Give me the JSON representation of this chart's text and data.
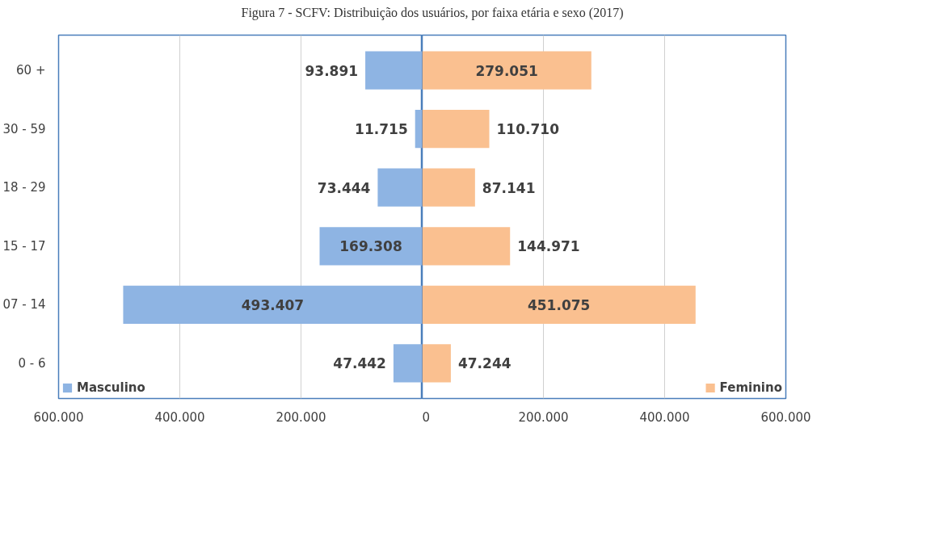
{
  "chart_data": [
    {
      "type": "bar",
      "orientation": "horizontal",
      "title": "Figura 7 - SCFV: Distribuição dos usuários, por faixa etária e sexo (2017)",
      "categories": [
        "60 +",
        "30 - 59",
        "18 - 29",
        "15 - 17",
        "07 - 14",
        "0 - 6"
      ],
      "series": [
        {
          "name": "Masculino",
          "color": "#8eb4e3",
          "values": [
            93891,
            11715,
            73444,
            169308,
            493407,
            47442
          ],
          "value_labels": [
            "93.891",
            "11.715",
            "73.444",
            "169.308",
            "493.407",
            "47.442"
          ]
        }
      ],
      "xlim": [
        600000,
        0
      ],
      "xticks": [
        {
          "value": 600000,
          "label": "600.000"
        },
        {
          "value": 400000,
          "label": "400.000"
        },
        {
          "value": 200000,
          "label": "200.000"
        },
        {
          "value": 0,
          "label": null
        }
      ],
      "grid": "x",
      "legend": "bottom left"
    },
    {
      "type": "bar",
      "orientation": "horizontal",
      "series": [
        {
          "name": "Feminino",
          "color": "#fac090",
          "values": [
            279051,
            110710,
            87141,
            144971,
            451075,
            47244
          ],
          "value_labels": [
            "279.051",
            "110.710",
            "87.141",
            "144.971",
            "451.075",
            "47.244"
          ]
        }
      ],
      "xlim": [
        0,
        600000
      ],
      "xticks": [
        0,
        {
          "value": 200000,
          "label": "200.000"
        },
        {
          "value": 400000,
          "label": "400.000"
        },
        {
          "value": 600000,
          "label": "600.000"
        }
      ],
      "grid": "x",
      "legend": "bottom right",
      "tick_labels": "x"
    }
  ]
}
